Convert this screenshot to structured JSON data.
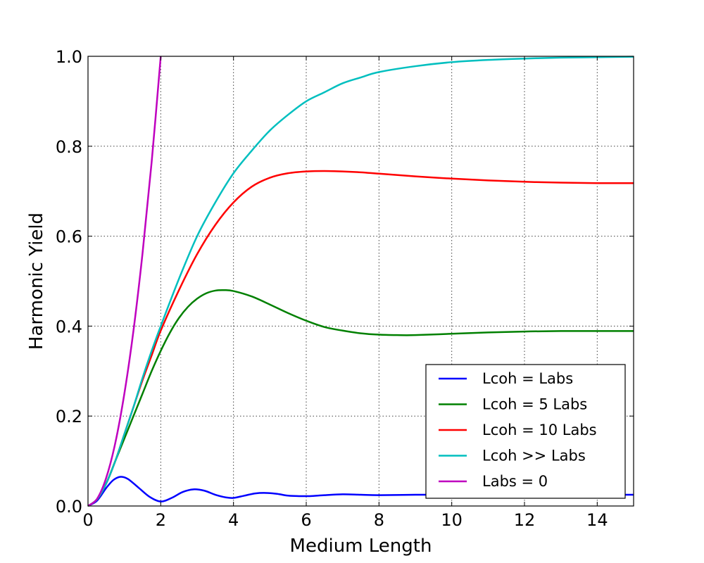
{
  "chart_data": {
    "type": "line",
    "title": "",
    "xlabel": "Medium Length",
    "ylabel": "Harmonic Yield",
    "xlim": [
      0,
      15
    ],
    "ylim": [
      0,
      1
    ],
    "xticks": [
      "0",
      "2",
      "4",
      "6",
      "8",
      "10",
      "12",
      "14"
    ],
    "yticks": [
      "0.0",
      "0.2",
      "0.4",
      "0.6",
      "0.8",
      "1.0"
    ],
    "grid": true,
    "legend_position": "lower-right",
    "series": [
      {
        "name": "Lcoh = Labs",
        "color": "#0000ff",
        "x": [
          0,
          0.25,
          0.5,
          0.7,
          0.9,
          1.1,
          1.4,
          1.7,
          2.0,
          2.3,
          2.6,
          2.9,
          3.2,
          3.5,
          3.8,
          4.0,
          4.3,
          4.6,
          4.9,
          5.2,
          5.5,
          5.8,
          6.1,
          6.5,
          7.0,
          7.5,
          8.0,
          9.0,
          10.0,
          11.0,
          12.0,
          13.0,
          14.0,
          15.0
        ],
        "y": [
          0,
          0.012,
          0.04,
          0.058,
          0.065,
          0.06,
          0.04,
          0.02,
          0.01,
          0.018,
          0.031,
          0.037,
          0.034,
          0.025,
          0.019,
          0.018,
          0.023,
          0.028,
          0.029,
          0.027,
          0.023,
          0.022,
          0.022,
          0.024,
          0.026,
          0.025,
          0.024,
          0.025,
          0.025,
          0.025,
          0.025,
          0.025,
          0.025,
          0.025
        ]
      },
      {
        "name": "Lcoh = 5 Labs",
        "color": "#008000",
        "x": [
          0,
          0.25,
          0.5,
          0.75,
          1.0,
          1.25,
          1.5,
          1.75,
          2.0,
          2.25,
          2.5,
          2.75,
          3.0,
          3.25,
          3.5,
          3.75,
          4.0,
          4.5,
          5.0,
          5.5,
          6.0,
          6.5,
          7.0,
          7.5,
          8.0,
          8.5,
          9.0,
          10.0,
          11.0,
          12.0,
          13.0,
          14.0,
          15.0
        ],
        "y": [
          0,
          0.015,
          0.05,
          0.1,
          0.15,
          0.2,
          0.25,
          0.3,
          0.345,
          0.385,
          0.418,
          0.443,
          0.461,
          0.473,
          0.479,
          0.48,
          0.478,
          0.466,
          0.448,
          0.429,
          0.412,
          0.398,
          0.39,
          0.384,
          0.381,
          0.38,
          0.38,
          0.383,
          0.386,
          0.388,
          0.389,
          0.389,
          0.389
        ]
      },
      {
        "name": "Lcoh = 10 Labs",
        "color": "#ff0000",
        "x": [
          0,
          0.25,
          0.5,
          0.75,
          1.0,
          1.25,
          1.5,
          1.75,
          2.0,
          2.5,
          3.0,
          3.5,
          4.0,
          4.5,
          5.0,
          5.5,
          6.0,
          6.5,
          7.0,
          7.5,
          8.0,
          9.0,
          10.0,
          11.0,
          12.0,
          13.0,
          14.0,
          15.0
        ],
        "y": [
          0,
          0.015,
          0.05,
          0.1,
          0.16,
          0.22,
          0.28,
          0.335,
          0.39,
          0.48,
          0.56,
          0.625,
          0.675,
          0.71,
          0.73,
          0.74,
          0.744,
          0.745,
          0.744,
          0.742,
          0.739,
          0.733,
          0.728,
          0.724,
          0.721,
          0.719,
          0.718,
          0.718
        ]
      },
      {
        "name": "Lcoh >> Labs",
        "color": "#00bfbf",
        "x": [
          0,
          0.25,
          0.5,
          0.75,
          1.0,
          1.25,
          1.5,
          1.75,
          2.0,
          2.5,
          3.0,
          3.5,
          4.0,
          4.5,
          5.0,
          5.5,
          6.0,
          6.5,
          7.0,
          7.5,
          8.0,
          9.0,
          10.0,
          11.0,
          12.0,
          13.0,
          14.0,
          15.0
        ],
        "y": [
          0,
          0.015,
          0.05,
          0.1,
          0.16,
          0.22,
          0.285,
          0.345,
          0.4,
          0.505,
          0.6,
          0.675,
          0.74,
          0.79,
          0.835,
          0.87,
          0.9,
          0.92,
          0.94,
          0.953,
          0.965,
          0.978,
          0.987,
          0.992,
          0.995,
          0.997,
          0.998,
          0.999
        ]
      },
      {
        "name": "Labs = 0",
        "color": "#bf00bf",
        "x": [
          0,
          0.25,
          0.5,
          0.75,
          1.0,
          1.25,
          1.5,
          1.75,
          2.0
        ],
        "y": [
          0,
          0.016,
          0.0625,
          0.14,
          0.25,
          0.39,
          0.5625,
          0.765,
          1.0
        ]
      }
    ]
  }
}
